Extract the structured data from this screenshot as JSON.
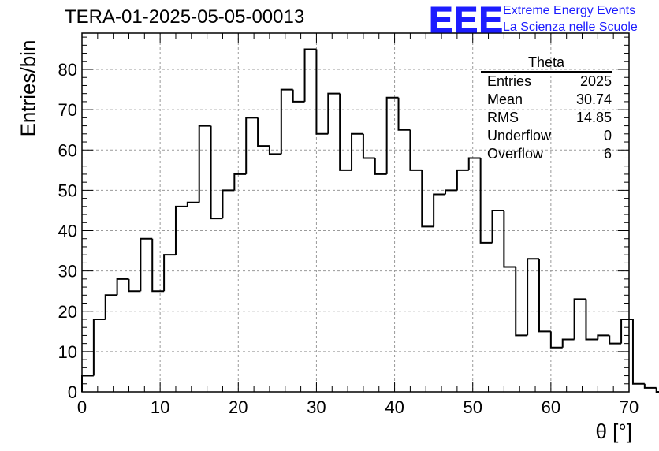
{
  "header": {
    "title": "TERA-01-2025-05-05-00013",
    "logo": "EEE",
    "logo_line1": "Extreme Energy Events",
    "logo_line2": "La Scienza nelle Scuole"
  },
  "stats_box": {
    "title": "Theta",
    "rows": [
      {
        "label": "Entries",
        "value": "2025"
      },
      {
        "label": "Mean",
        "value": "30.74"
      },
      {
        "label": "RMS",
        "value": "14.85"
      },
      {
        "label": "Underflow",
        "value": "0"
      },
      {
        "label": "Overflow",
        "value": "6"
      }
    ]
  },
  "colors": {
    "line": "#000000",
    "grid": "#9a9a9a",
    "logo": "#1c1cff"
  },
  "chart_data": {
    "type": "histogram",
    "xlabel": "θ [°]",
    "ylabel": "Entries/bin",
    "xlim": [
      0,
      70
    ],
    "ylim": [
      0,
      89
    ],
    "grid": true,
    "x_ticks": [
      0,
      10,
      20,
      30,
      40,
      50,
      60,
      70
    ],
    "y_ticks": [
      0,
      10,
      20,
      30,
      40,
      50,
      60,
      70,
      80
    ],
    "bin_width": 1.5,
    "bin_edges_start": 0,
    "values": [
      4,
      18,
      24,
      28,
      25,
      38,
      25,
      34,
      46,
      47,
      66,
      43,
      50,
      54,
      68,
      61,
      59,
      75,
      72,
      85,
      64,
      74,
      55,
      64,
      58,
      54,
      73,
      65,
      55,
      41,
      49,
      50,
      55,
      58,
      37,
      45,
      31,
      14,
      33,
      15,
      11,
      13,
      23,
      13,
      14,
      12,
      18,
      2,
      1,
      0
    ]
  }
}
